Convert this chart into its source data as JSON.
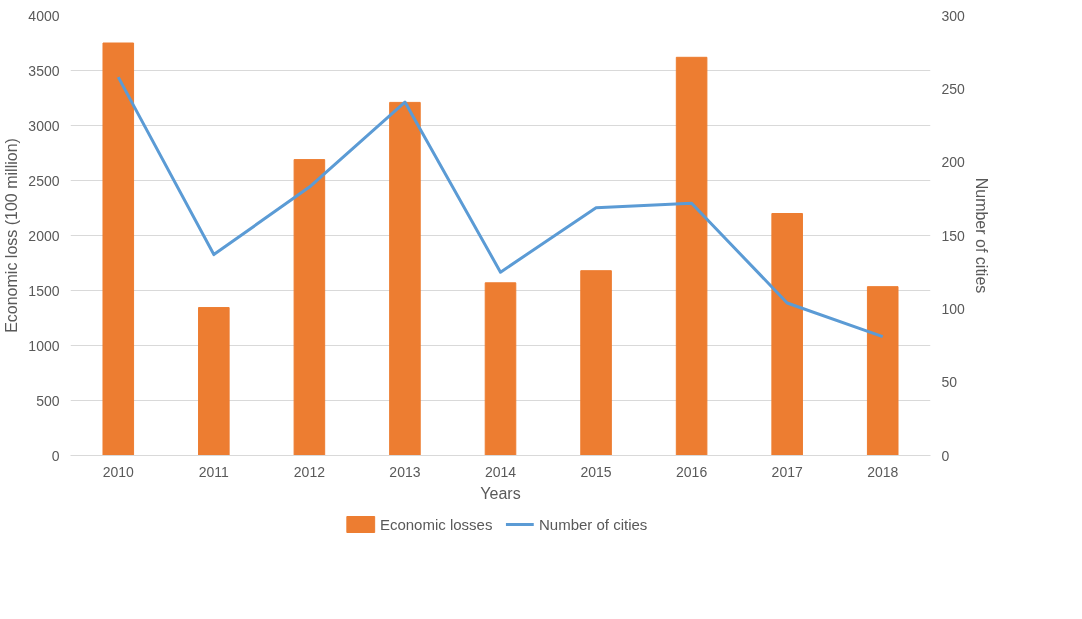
{
  "chart_data": {
    "type": "bar",
    "xlabel": "Years",
    "ylabel": "Economic loss (100 million)",
    "y2label": "Number of cities",
    "categories": [
      "2010",
      "2011",
      "2012",
      "2013",
      "2014",
      "2015",
      "2016",
      "2017",
      "2018"
    ],
    "series": [
      {
        "name": "Economic losses",
        "color": "#ed7d31",
        "values": [
          3750,
          1345,
          2690,
          3210,
          1570,
          1680,
          3620,
          2200,
          1535
        ]
      },
      {
        "name": "Number of cities",
        "type": "line",
        "axis": "y2",
        "color": "#5b9bd5",
        "values": [
          258,
          137,
          183,
          241,
          125,
          169,
          172,
          104,
          81
        ]
      }
    ],
    "ylim": [
      0,
      4000
    ],
    "yticks": [
      0,
      500,
      1000,
      1500,
      2000,
      2500,
      3000,
      3500,
      4000
    ],
    "y2lim": [
      0,
      300
    ],
    "y2ticks": [
      0,
      50,
      100,
      150,
      200,
      250,
      300
    ],
    "grid": "y",
    "legend": "bottom",
    "marker": "none",
    "line_style": "solid"
  }
}
